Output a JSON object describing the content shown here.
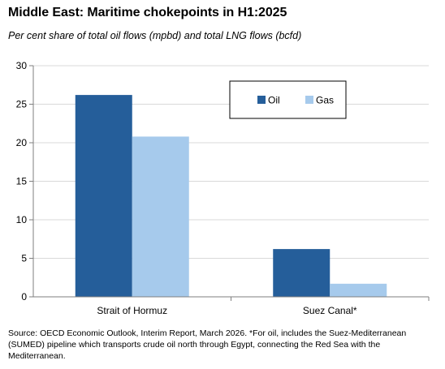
{
  "title": "Middle East: Maritime chokepoints in H1:2025",
  "subtitle": "Per cent share of total oil flows (mpbd) and total LNG flows (bcfd)",
  "source": "Source: OECD Economic Outlook, Interim Report, March 2026. *For oil, includes the Suez-Mediterranean (SUMED) pipeline which transports crude oil north through Egypt, connecting the Red Sea with the Mediterranean.",
  "chart_data": {
    "type": "bar",
    "categories": [
      "Strait of Hormuz",
      "Suez Canal*"
    ],
    "series": [
      {
        "name": "Oil",
        "values": [
          26.2,
          6.2
        ],
        "color": "#255E9A"
      },
      {
        "name": "Gas",
        "values": [
          20.8,
          1.7
        ],
        "color": "#A6CAEC"
      }
    ],
    "ylim": [
      0,
      30
    ],
    "yticks": [
      0,
      5,
      10,
      15,
      20,
      25,
      30
    ],
    "grid": true,
    "legend": "top-right",
    "xlabel": "",
    "ylabel": ""
  }
}
